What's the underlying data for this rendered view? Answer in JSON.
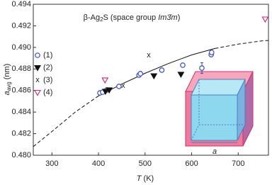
{
  "chart_data": {
    "type": "scatter",
    "title_parts": [
      "β-Ag",
      "2",
      "S (space group ",
      "Im3̄m",
      ")"
    ],
    "x_label_parts": [
      "T",
      " (K)"
    ],
    "y_label_parts": [
      "a",
      "avg",
      " (nm)"
    ],
    "inset_label": "a",
    "xlim": [
      260,
      765
    ],
    "xticks": [
      300,
      400,
      500,
      600,
      700
    ],
    "ylim": [
      0.48,
      0.494
    ],
    "yticks": [
      {
        "value": 0.48,
        "label": "0.480"
      },
      {
        "value": 0.482,
        "label": "0.482"
      },
      {
        "value": 0.484,
        "label": "0.484"
      },
      {
        "value": 0.486,
        "label": "0.486"
      },
      {
        "value": 0.488,
        "label": "0.488"
      },
      {
        "value": 0.49,
        "label": "0.490"
      },
      {
        "value": 0.492,
        "label": "0.492"
      },
      {
        "value": 0.494,
        "label": "0.494"
      }
    ],
    "series": [
      {
        "name": "(1)",
        "marker": "circle",
        "color": "#3a4fb5",
        "x": [
          403,
          409,
          418,
          444,
          487,
          490,
          536,
          581,
          622,
          642,
          643
        ],
        "values": [
          0.48578,
          0.48585,
          0.48605,
          0.48638,
          0.48743,
          0.48756,
          0.48789,
          0.48835,
          0.48808,
          0.48933,
          0.48953
        ],
        "errors": [
          0.0001,
          0.0001,
          0.0001,
          0.0001,
          0.0002,
          0.0002,
          0.0001,
          0.0001,
          0.0005,
          0.0002,
          0.0002
        ]
      },
      {
        "name": "(2)",
        "marker": "triangle-down-filled",
        "color": "#111111",
        "x": [
          415,
          423,
          519,
          577
        ],
        "values": [
          0.48592,
          0.48605,
          0.48736,
          0.4875
        ]
      },
      {
        "name": "(3)",
        "marker": "x",
        "color": "#111111",
        "x": [
          453,
          508
        ],
        "values": [
          0.48645,
          0.48927
        ]
      },
      {
        "name": "(4)",
        "marker": "triangle-down-open",
        "color": "#c8287a",
        "x": [
          414,
          758
        ],
        "values": [
          0.48697,
          0.49262
        ]
      }
    ],
    "fit": [
      {
        "style": "dashed",
        "x": [
          260,
          300,
          350,
          400
        ],
        "values": [
          0.4808,
          0.4822,
          0.484,
          0.4855
        ]
      },
      {
        "style": "solid",
        "x": [
          400,
          450,
          500,
          550,
          600,
          650
        ],
        "values": [
          0.4855,
          0.4866,
          0.4876,
          0.4885,
          0.4893,
          0.4899
        ]
      },
      {
        "style": "dashed",
        "x": [
          650,
          700,
          750,
          765
        ],
        "values": [
          0.4899,
          0.4903,
          0.4906,
          0.49065
        ]
      }
    ]
  }
}
